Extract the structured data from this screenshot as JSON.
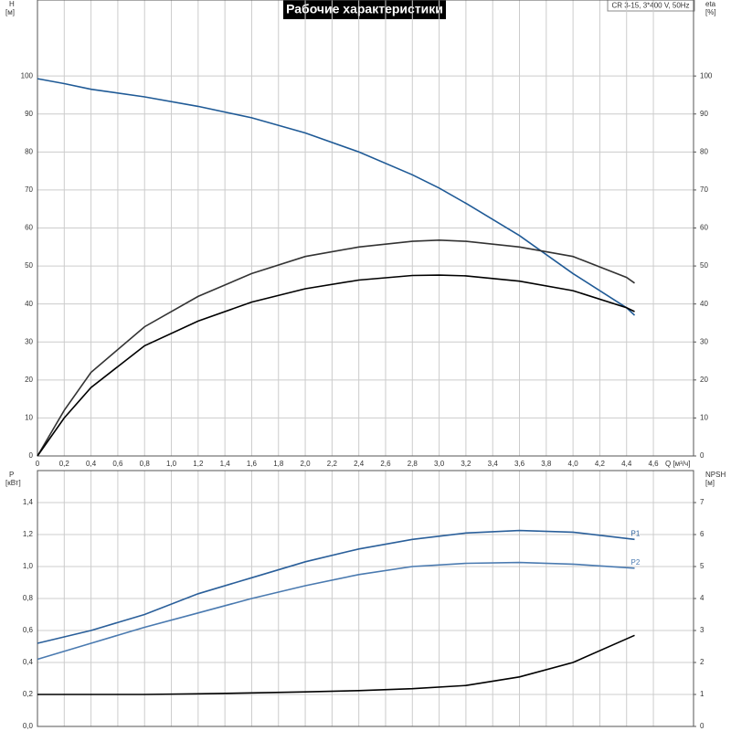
{
  "title": "Рабочие характеристики",
  "info": "CR 3-15, 3*400 V, 50Hz",
  "chart_data": [
    {
      "type": "line",
      "xlabel": "Q [м³/ч]",
      "ylabel": "H",
      "yunit": "[м]",
      "y2label": "eta",
      "y2unit": "[%]",
      "x": [
        0,
        0.2,
        0.4,
        0.8,
        1.2,
        1.6,
        2.0,
        2.4,
        2.8,
        3.0,
        3.2,
        3.6,
        4.0,
        4.4,
        4.46
      ],
      "xlim": [
        0,
        4.9
      ],
      "xticks": [
        0,
        {
          "value": 0.2,
          "label": "0,2"
        },
        {
          "value": 0.4,
          "label": "0,4"
        },
        {
          "value": 0.6,
          "label": "0,6"
        },
        {
          "value": 0.8,
          "label": "0,8"
        },
        {
          "value": 1.0,
          "label": "1,0"
        },
        {
          "value": 1.2,
          "label": "1,2"
        },
        {
          "value": 1.4,
          "label": "1,4"
        },
        {
          "value": 1.6,
          "label": "1,6"
        },
        {
          "value": 1.8,
          "label": "1,8"
        },
        {
          "value": 2.0,
          "label": "2,0"
        },
        {
          "value": 2.2,
          "label": "2,2"
        },
        {
          "value": 2.4,
          "label": "2,4"
        },
        {
          "value": 2.6,
          "label": "2,6"
        },
        {
          "value": 2.8,
          "label": "2,8"
        },
        {
          "value": 3.0,
          "label": "3,0"
        },
        {
          "value": 3.2,
          "label": "3,2"
        },
        {
          "value": 3.4,
          "label": "3,4"
        },
        {
          "value": 3.6,
          "label": "3,6"
        },
        {
          "value": 3.8,
          "label": "3,8"
        },
        {
          "value": 4.0,
          "label": "4,0"
        },
        {
          "value": 4.2,
          "label": "4,2"
        },
        {
          "value": 4.4,
          "label": "4,4"
        },
        {
          "value": 4.6,
          "label": "4,6"
        }
      ],
      "ylim": [
        0,
        120
      ],
      "yticks": [
        0,
        10,
        20,
        30,
        40,
        50,
        60,
        70,
        80,
        90,
        100
      ],
      "y2lim": [
        0,
        120
      ],
      "y2ticks": [
        0,
        10,
        20,
        30,
        40,
        50,
        60,
        70,
        80,
        90,
        100
      ],
      "grid": true,
      "series": [
        {
          "color": "#1f5a96",
          "values": [
            99.3,
            98,
            96.5,
            94.5,
            92,
            89,
            85,
            80,
            74,
            70.5,
            66.5,
            58,
            48,
            39,
            37
          ]
        },
        {
          "color": "#333333",
          "axis": "y2",
          "values": [
            0,
            12,
            22,
            34,
            42,
            48,
            52.5,
            55,
            56.5,
            56.8,
            56.5,
            55,
            52.5,
            47,
            45.5
          ]
        },
        {
          "color": "#000000",
          "axis": "y2",
          "values": [
            0,
            10,
            18,
            29,
            35.5,
            40.5,
            44,
            46.3,
            47.5,
            47.6,
            47.4,
            46,
            43.5,
            39,
            38
          ]
        }
      ]
    },
    {
      "type": "line",
      "ylabel": "P",
      "yunit": "[кВт]",
      "y2label": "NPSH",
      "y2unit": "[м]",
      "x": [
        0,
        0.4,
        0.8,
        1.2,
        1.6,
        2.0,
        2.4,
        2.8,
        3.2,
        3.6,
        4.0,
        4.46
      ],
      "xlim": [
        0,
        4.9
      ],
      "ylim": [
        0,
        1.6
      ],
      "yticks": [
        {
          "value": 0,
          "label": "0,0"
        },
        {
          "value": 0.2,
          "label": "0,2"
        },
        {
          "value": 0.4,
          "label": "0,4"
        },
        {
          "value": 0.6,
          "label": "0,6"
        },
        {
          "value": 0.8,
          "label": "0,8"
        },
        {
          "value": 1.0,
          "label": "1,0"
        },
        {
          "value": 1.2,
          "label": "1,2"
        },
        {
          "value": 1.4,
          "label": "1,4"
        }
      ],
      "y2lim": [
        0,
        8
      ],
      "y2ticks": [
        0,
        1,
        2,
        3,
        4,
        5,
        6,
        7
      ],
      "grid": true,
      "series": [
        {
          "name": "P1",
          "color": "#2a5f9a",
          "values": [
            0.52,
            0.6,
            0.7,
            0.83,
            0.93,
            1.03,
            1.11,
            1.17,
            1.21,
            1.225,
            1.215,
            1.17
          ]
        },
        {
          "name": "P2",
          "color": "#4a7ab0",
          "values": [
            0.42,
            0.52,
            0.62,
            0.71,
            0.8,
            0.88,
            0.95,
            1.0,
            1.02,
            1.025,
            1.015,
            0.99
          ]
        },
        {
          "color": "#000000",
          "axis": "y2",
          "values": [
            1.0,
            1.0,
            1.0,
            1.02,
            1.05,
            1.08,
            1.12,
            1.18,
            1.28,
            1.55,
            2.0,
            2.85
          ]
        }
      ]
    }
  ]
}
